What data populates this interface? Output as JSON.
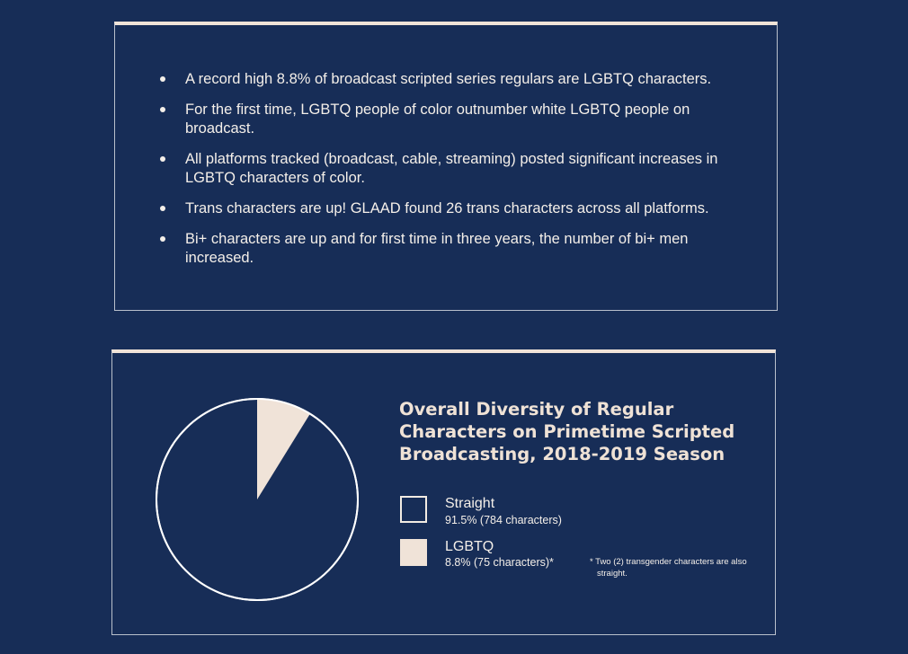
{
  "highlights": [
    "A record high 8.8% of broadcast scripted series regulars are LGBTQ characters.",
    "For the first time, LGBTQ people of color outnumber white LGBTQ people on broadcast.",
    "All platforms tracked (broadcast, cable, streaming) posted significant increases in LGBTQ characters of color.",
    "Trans characters are up! GLAAD found 26 trans characters across all platforms.",
    "Bi+ characters are up and for first time in three years, the number of bi+ men increased."
  ],
  "chart_data": {
    "type": "pie",
    "title": "Overall Diversity of Regular Characters on Primetime Scripted Broadcasting, 2018-2019 Season",
    "slices": [
      {
        "name": "Straight",
        "value": 91.5,
        "detail": "91.5% (784 characters)",
        "color": "#172d57"
      },
      {
        "name": "LGBTQ",
        "value": 8.8,
        "detail": "8.8% (75 characters)*",
        "color": "#f0e3d8"
      }
    ],
    "footnote": "* Two (2) transgender characters are also straight."
  },
  "colors": {
    "background": "#172d57",
    "accent": "#f0e3d8",
    "outline": "#ffffff"
  }
}
